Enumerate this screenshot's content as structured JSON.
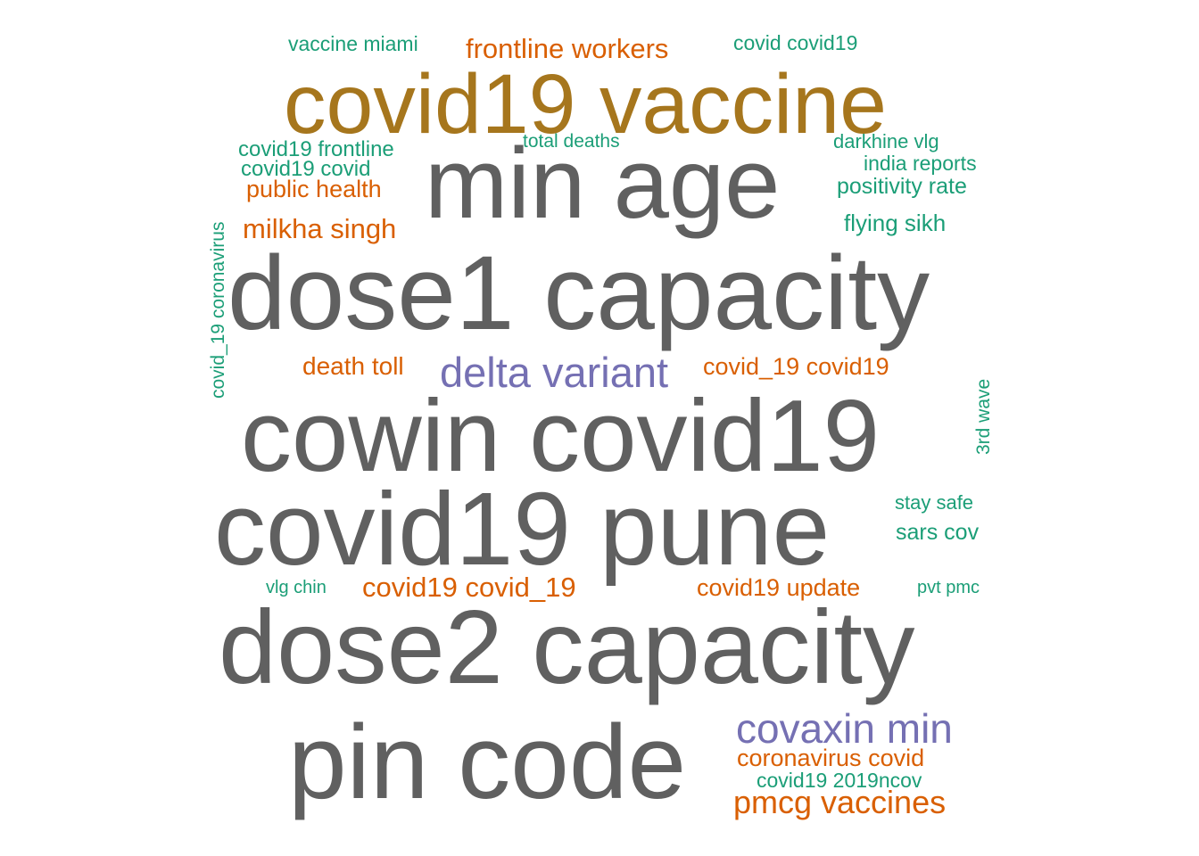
{
  "colors": {
    "gray": "#606060",
    "gold": "#A6761D",
    "purple": "#7570B3",
    "orange": "#D95F02",
    "teal": "#1B9E77"
  },
  "words": [
    {
      "text": "covid19 vaccine",
      "color": "gold"
    },
    {
      "text": "min age",
      "color": "gray"
    },
    {
      "text": "dose1 capacity",
      "color": "gray"
    },
    {
      "text": "cowin covid19",
      "color": "gray"
    },
    {
      "text": "covid19 pune",
      "color": "gray"
    },
    {
      "text": "dose2 capacity",
      "color": "gray"
    },
    {
      "text": "pin code",
      "color": "gray"
    },
    {
      "text": "delta variant",
      "color": "purple"
    },
    {
      "text": "covaxin min",
      "color": "purple"
    },
    {
      "text": "frontline workers",
      "color": "orange"
    },
    {
      "text": "public health",
      "color": "orange"
    },
    {
      "text": "milkha singh",
      "color": "orange"
    },
    {
      "text": "death toll",
      "color": "orange"
    },
    {
      "text": "covid_19 covid19",
      "color": "orange"
    },
    {
      "text": "covid19 covid_19",
      "color": "orange"
    },
    {
      "text": "covid19 update",
      "color": "orange"
    },
    {
      "text": "coronavirus covid",
      "color": "orange"
    },
    {
      "text": "pmcg vaccines",
      "color": "orange"
    },
    {
      "text": "vaccine miami",
      "color": "teal"
    },
    {
      "text": "covid covid19",
      "color": "teal"
    },
    {
      "text": "total deaths",
      "color": "teal"
    },
    {
      "text": "covid19 frontline",
      "color": "teal"
    },
    {
      "text": "covid19 covid",
      "color": "teal"
    },
    {
      "text": "darkhine vlg",
      "color": "teal"
    },
    {
      "text": "india reports",
      "color": "teal"
    },
    {
      "text": "positivity rate",
      "color": "teal"
    },
    {
      "text": "flying sikh",
      "color": "teal"
    },
    {
      "text": "covid_19 coronavirus",
      "color": "teal"
    },
    {
      "text": "3rd wave",
      "color": "teal"
    },
    {
      "text": "stay safe",
      "color": "teal"
    },
    {
      "text": "sars cov",
      "color": "teal"
    },
    {
      "text": "vlg chin",
      "color": "teal"
    },
    {
      "text": "pvt pmc",
      "color": "teal"
    },
    {
      "text": "covid19 2019ncov",
      "color": "teal"
    }
  ]
}
